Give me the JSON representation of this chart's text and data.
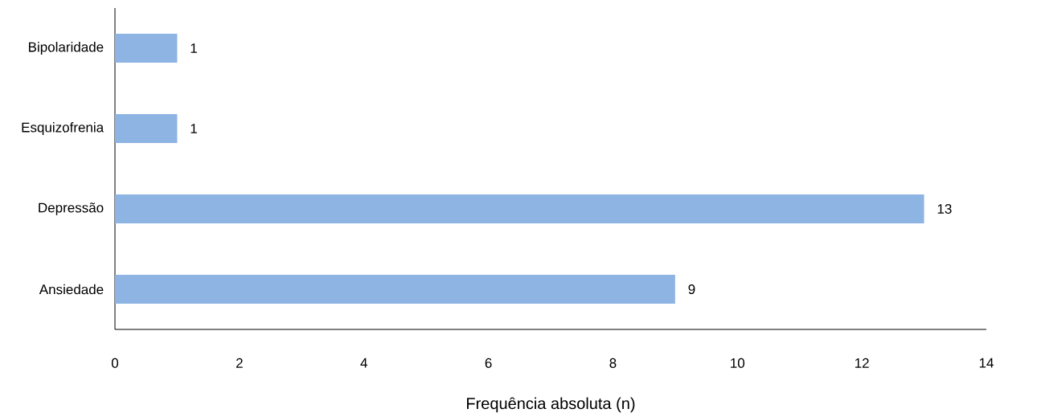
{
  "chart_data": {
    "type": "bar",
    "orientation": "horizontal",
    "xlabel": "Frequência absoluta (n)",
    "categories": [
      "Bipolaridade",
      "Esquizofrenia",
      "Depressão",
      "Ansiedade"
    ],
    "values": [
      1,
      1,
      13,
      9
    ],
    "color": "#8eb4e3",
    "xlim": [
      0,
      14
    ],
    "xticks": [
      0,
      2,
      4,
      6,
      8,
      10,
      12,
      14
    ],
    "data_labels": true,
    "grid": false
  }
}
